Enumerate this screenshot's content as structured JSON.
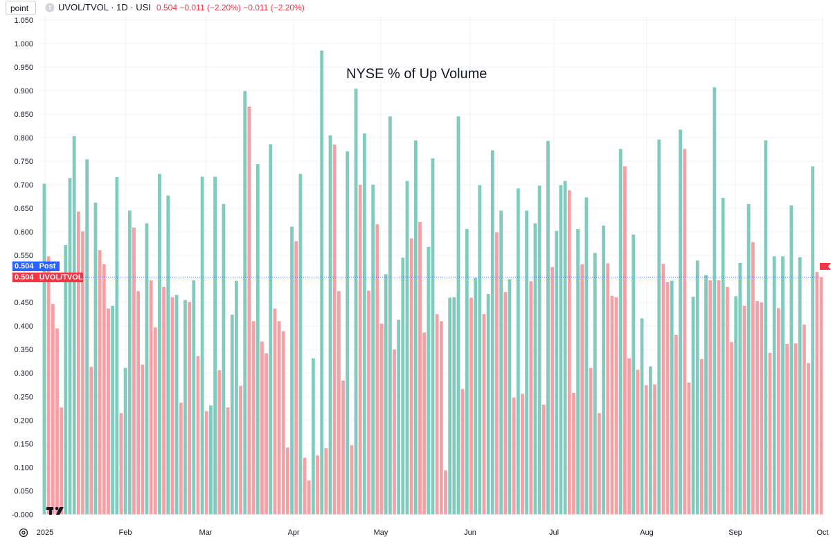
{
  "toolbar": {
    "interval_value": "point"
  },
  "legend": {
    "title": "UVOL/TVOL · 1D · USI",
    "values": "0.504 −0.011 (−2.20%) −0.011 (−2.20%)"
  },
  "tags": {
    "post_value": "0.504",
    "post_label": "Post",
    "main_value": "0.504",
    "main_label": "UVOL/TVOL"
  },
  "colors": {
    "up": "#80cbbe",
    "down": "#f5a0a4",
    "post": "#2962ff",
    "main": "#f23645",
    "grid": "#f0f3fa"
  },
  "chart_data": {
    "type": "bar",
    "title": "",
    "annotation": "NYSE % of Up Volume",
    "ylim": [
      -0.02,
      1.06
    ],
    "yticks": [
      "1.050",
      "1.000",
      "0.950",
      "0.900",
      "0.850",
      "0.800",
      "0.750",
      "0.700",
      "0.650",
      "0.600",
      "0.550",
      "0.500",
      "0.450",
      "0.400",
      "0.350",
      "0.300",
      "0.250",
      "0.200",
      "0.150",
      "0.100",
      "0.050",
      "-0.000"
    ],
    "xticks": [
      "2025",
      "Feb",
      "Mar",
      "Apr",
      "May",
      "Jun",
      "Jul",
      "Aug",
      "Sep",
      "Oct"
    ],
    "last_value": 0.504,
    "series": [
      {
        "values": [
          0.702,
          0.548,
          0.447,
          0.395,
          0.227,
          0.572,
          0.714,
          0.803,
          0.643,
          0.601,
          0.754,
          0.313,
          0.662,
          0.561,
          0.531,
          0.437,
          0.443,
          0.716,
          0.215,
          0.311,
          0.645,
          0.609,
          0.474,
          0.318,
          0.618,
          0.497,
          0.397,
          0.723,
          0.483,
          0.677,
          0.461,
          0.466,
          0.237,
          0.455,
          0.451,
          0.497,
          0.336,
          0.717,
          0.219,
          0.231,
          0.717,
          0.306,
          0.659,
          0.227,
          0.424,
          0.496,
          0.273,
          0.899,
          0.866,
          0.41,
          0.744,
          0.367,
          0.342,
          0.786,
          0.437,
          0.41,
          0.389,
          0.142,
          0.611,
          0.58,
          0.723,
          0.12,
          0.072,
          0.331,
          0.125,
          0.985,
          0.14,
          0.805,
          0.785,
          0.474,
          0.284,
          0.771,
          0.147,
          0.904,
          0.7,
          0.809,
          0.475,
          0.7,
          0.616,
          0.405,
          0.51,
          0.845,
          0.35,
          0.413,
          0.545,
          0.708,
          0.586,
          0.794,
          0.621,
          0.386,
          0.568,
          0.756,
          0.425,
          0.41,
          0.093,
          0.46,
          0.461,
          0.845,
          0.266,
          0.606,
          0.46,
          0.502,
          0.699,
          0.425,
          0.468,
          0.773,
          0.599,
          0.645,
          0.472,
          0.499,
          0.248,
          0.692,
          0.256,
          0.645,
          0.495,
          0.618,
          0.698,
          0.233,
          0.793,
          0.525,
          0.602,
          0.699,
          0.708,
          0.688,
          0.258,
          0.606,
          0.531,
          0.673,
          0.311,
          0.555,
          0.215,
          0.613,
          0.533,
          0.464,
          0.461,
          0.776,
          0.739,
          0.331,
          0.594,
          0.307,
          0.416,
          0.274,
          0.314,
          0.276,
          0.796,
          0.532,
          0.493,
          0.496,
          0.381,
          0.817,
          0.776,
          0.28,
          0.462,
          0.539,
          0.33,
          0.508,
          0.497,
          0.907,
          0.497,
          0.672,
          0.483,
          0.366,
          0.463,
          0.534,
          0.443,
          0.659,
          0.578,
          0.453,
          0.45,
          0.794,
          0.343,
          0.548,
          0.438,
          0.548,
          0.362,
          0.656,
          0.363,
          0.546,
          0.403,
          0.321,
          0.739,
          0.515,
          0.504
        ]
      }
    ]
  }
}
